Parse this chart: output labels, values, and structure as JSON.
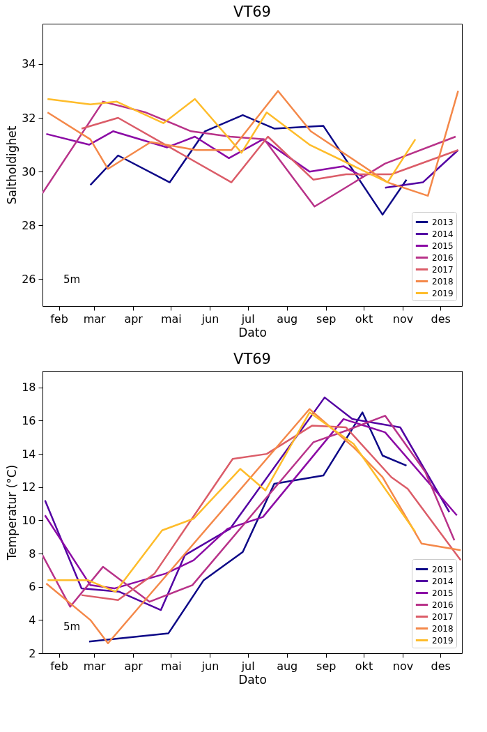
{
  "chart_data": [
    {
      "type": "line",
      "title": "VT69",
      "xlabel": "Dato",
      "ylabel": "Saltholdighet",
      "annotations": [
        "5m"
      ],
      "legend": "bottom right",
      "grid": false,
      "xlim": [
        "--01-19",
        "--12-18"
      ],
      "ylim": [
        25,
        35.5
      ],
      "yticks": [
        26,
        28,
        30,
        32,
        34
      ],
      "xticks": [
        {
          "value": "--02-01",
          "label": "feb"
        },
        {
          "value": "--03-01",
          "label": "mar"
        },
        {
          "value": "--04-01",
          "label": "apr"
        },
        {
          "value": "--05-01",
          "label": "mai"
        },
        {
          "value": "--06-01",
          "label": "jun"
        },
        {
          "value": "--07-01",
          "label": "jul"
        },
        {
          "value": "--08-01",
          "label": "aug"
        },
        {
          "value": "--09-01",
          "label": "sep"
        },
        {
          "value": "--10-01",
          "label": "okt"
        },
        {
          "value": "--11-01",
          "label": "nov"
        },
        {
          "value": "--12-01",
          "label": "des"
        }
      ],
      "series": [
        {
          "name": "2013",
          "color": "#0d0887",
          "x": [
            "--02-26",
            "--03-20",
            "--04-30",
            "--05-28",
            "--06-27",
            "--07-22",
            "--08-30",
            "--10-16",
            "--11-04"
          ],
          "values": [
            29.5,
            30.6,
            29.6,
            31.5,
            32.1,
            31.6,
            31.7,
            28.4,
            29.7
          ]
        },
        {
          "name": "2014",
          "color": "#5302a3",
          "x": [
            "--10-18",
            "--11-17",
            "--12-15"
          ],
          "values": [
            29.4,
            29.6,
            30.8
          ]
        },
        {
          "name": "2015",
          "color": "#8b0aa5",
          "x": [
            "--01-22",
            "--02-25",
            "--03-16",
            "--04-28",
            "--05-20",
            "--06-16",
            "--07-13",
            "--08-19",
            "--09-15",
            "--10-01"
          ],
          "values": [
            31.4,
            31.0,
            31.5,
            30.9,
            31.3,
            30.5,
            31.2,
            30.0,
            30.2,
            29.8
          ]
        },
        {
          "name": "2016",
          "color": "#b83289",
          "x": [
            "--01-19",
            "--03-08",
            "--04-11",
            "--05-17",
            "--06-17",
            "--07-14",
            "--08-23",
            "--10-18",
            "--12-13"
          ],
          "values": [
            29.2,
            32.6,
            32.2,
            31.5,
            31.3,
            31.2,
            28.7,
            30.3,
            31.3
          ]
        },
        {
          "name": "2017",
          "color": "#db5c68",
          "x": [
            "--02-19",
            "--03-20",
            "--06-18",
            "--07-17",
            "--08-22",
            "--09-17",
            "--10-23",
            "--12-15"
          ],
          "values": [
            31.6,
            32.0,
            29.6,
            31.3,
            29.7,
            29.9,
            29.9,
            30.8
          ]
        },
        {
          "name": "2018",
          "color": "#f48849",
          "x": [
            "--01-23",
            "--02-26",
            "--03-12",
            "--04-15",
            "--05-21",
            "--06-18",
            "--07-25",
            "--08-20",
            "--10-20",
            "--11-21",
            "--12-15"
          ],
          "values": [
            32.2,
            31.2,
            30.1,
            31.1,
            30.8,
            30.8,
            33.0,
            31.5,
            29.6,
            29.1,
            33.0
          ]
        },
        {
          "name": "2019",
          "color": "#febc2a",
          "x": [
            "--01-23",
            "--02-26",
            "--03-19",
            "--04-25",
            "--05-20",
            "--06-26",
            "--07-16",
            "--08-19",
            "--10-20",
            "--11-11"
          ],
          "values": [
            32.7,
            32.5,
            32.6,
            31.8,
            32.7,
            30.7,
            32.2,
            31.0,
            29.6,
            31.2
          ]
        }
      ]
    },
    {
      "type": "line",
      "title": "VT69",
      "xlabel": "Dato",
      "ylabel": "Temperatur (°C)",
      "annotations": [
        "5m"
      ],
      "legend": "bottom right",
      "grid": false,
      "xlim": [
        "--01-19",
        "--12-18"
      ],
      "ylim": [
        2,
        19
      ],
      "yticks": [
        2,
        4,
        6,
        8,
        10,
        12,
        14,
        16,
        18
      ],
      "xticks": [
        {
          "value": "--02-01",
          "label": "feb"
        },
        {
          "value": "--03-01",
          "label": "mar"
        },
        {
          "value": "--04-01",
          "label": "apr"
        },
        {
          "value": "--05-01",
          "label": "mai"
        },
        {
          "value": "--06-01",
          "label": "jun"
        },
        {
          "value": "--07-01",
          "label": "jul"
        },
        {
          "value": "--08-01",
          "label": "aug"
        },
        {
          "value": "--09-01",
          "label": "sep"
        },
        {
          "value": "--10-01",
          "label": "okt"
        },
        {
          "value": "--11-01",
          "label": "nov"
        },
        {
          "value": "--12-01",
          "label": "des"
        }
      ],
      "series": [
        {
          "name": "2013",
          "color": "#0d0887",
          "x": [
            "--02-25",
            "--04-29",
            "--05-27",
            "--06-27",
            "--07-22",
            "--08-30",
            "--09-30",
            "--10-16",
            "--11-04"
          ],
          "values": [
            2.7,
            3.2,
            6.4,
            8.1,
            12.2,
            12.7,
            16.5,
            13.9,
            13.3
          ]
        },
        {
          "name": "2014",
          "color": "#5302a3",
          "x": [
            "--01-21",
            "--02-19",
            "--03-21",
            "--04-23",
            "--05-12",
            "--06-17",
            "--08-31",
            "--09-22",
            "--10-30",
            "--12-08"
          ],
          "values": [
            11.2,
            5.9,
            5.7,
            4.6,
            7.9,
            9.5,
            17.4,
            16.1,
            15.6,
            10.5
          ]
        },
        {
          "name": "2015",
          "color": "#8b0aa5",
          "x": [
            "--01-21",
            "--02-26",
            "--03-17",
            "--04-27",
            "--05-19",
            "--06-15",
            "--07-13",
            "--09-15",
            "--10-18",
            "--12-14"
          ],
          "values": [
            10.3,
            6.1,
            5.9,
            6.8,
            7.6,
            9.5,
            10.2,
            16.1,
            15.3,
            10.3
          ]
        },
        {
          "name": "2016",
          "color": "#b83289",
          "x": [
            "--01-19",
            "--02-10",
            "--03-08",
            "--04-14",
            "--05-18",
            "--08-22",
            "--09-17",
            "--10-18",
            "--11-19",
            "--12-12"
          ],
          "values": [
            7.9,
            4.8,
            7.2,
            5.1,
            6.1,
            14.7,
            15.4,
            16.3,
            12.9,
            8.8
          ]
        },
        {
          "name": "2017",
          "color": "#db5c68",
          "x": [
            "--02-19",
            "--03-20",
            "--04-18",
            "--06-19",
            "--07-16",
            "--08-21",
            "--09-17",
            "--10-23",
            "--11-05",
            "--12-17"
          ],
          "values": [
            5.5,
            5.2,
            6.8,
            13.7,
            14.0,
            15.7,
            15.6,
            12.6,
            11.9,
            7.6
          ]
        },
        {
          "name": "2018",
          "color": "#f48849",
          "x": [
            "--01-22",
            "--02-26",
            "--03-12",
            "--04-15",
            "--08-19",
            "--09-23",
            "--10-16",
            "--11-16",
            "--12-17"
          ],
          "values": [
            6.2,
            4.0,
            2.6,
            5.6,
            16.7,
            14.4,
            12.6,
            8.6,
            8.2
          ]
        },
        {
          "name": "2019",
          "color": "#febc2a",
          "x": [
            "--01-23",
            "--02-24",
            "--03-18",
            "--04-24",
            "--05-19",
            "--06-25",
            "--07-15",
            "--08-19",
            "--09-23",
            "--11-11"
          ],
          "values": [
            6.4,
            6.4,
            5.7,
            9.4,
            10.1,
            13.1,
            11.8,
            16.5,
            14.6,
            9.3
          ]
        }
      ]
    }
  ]
}
